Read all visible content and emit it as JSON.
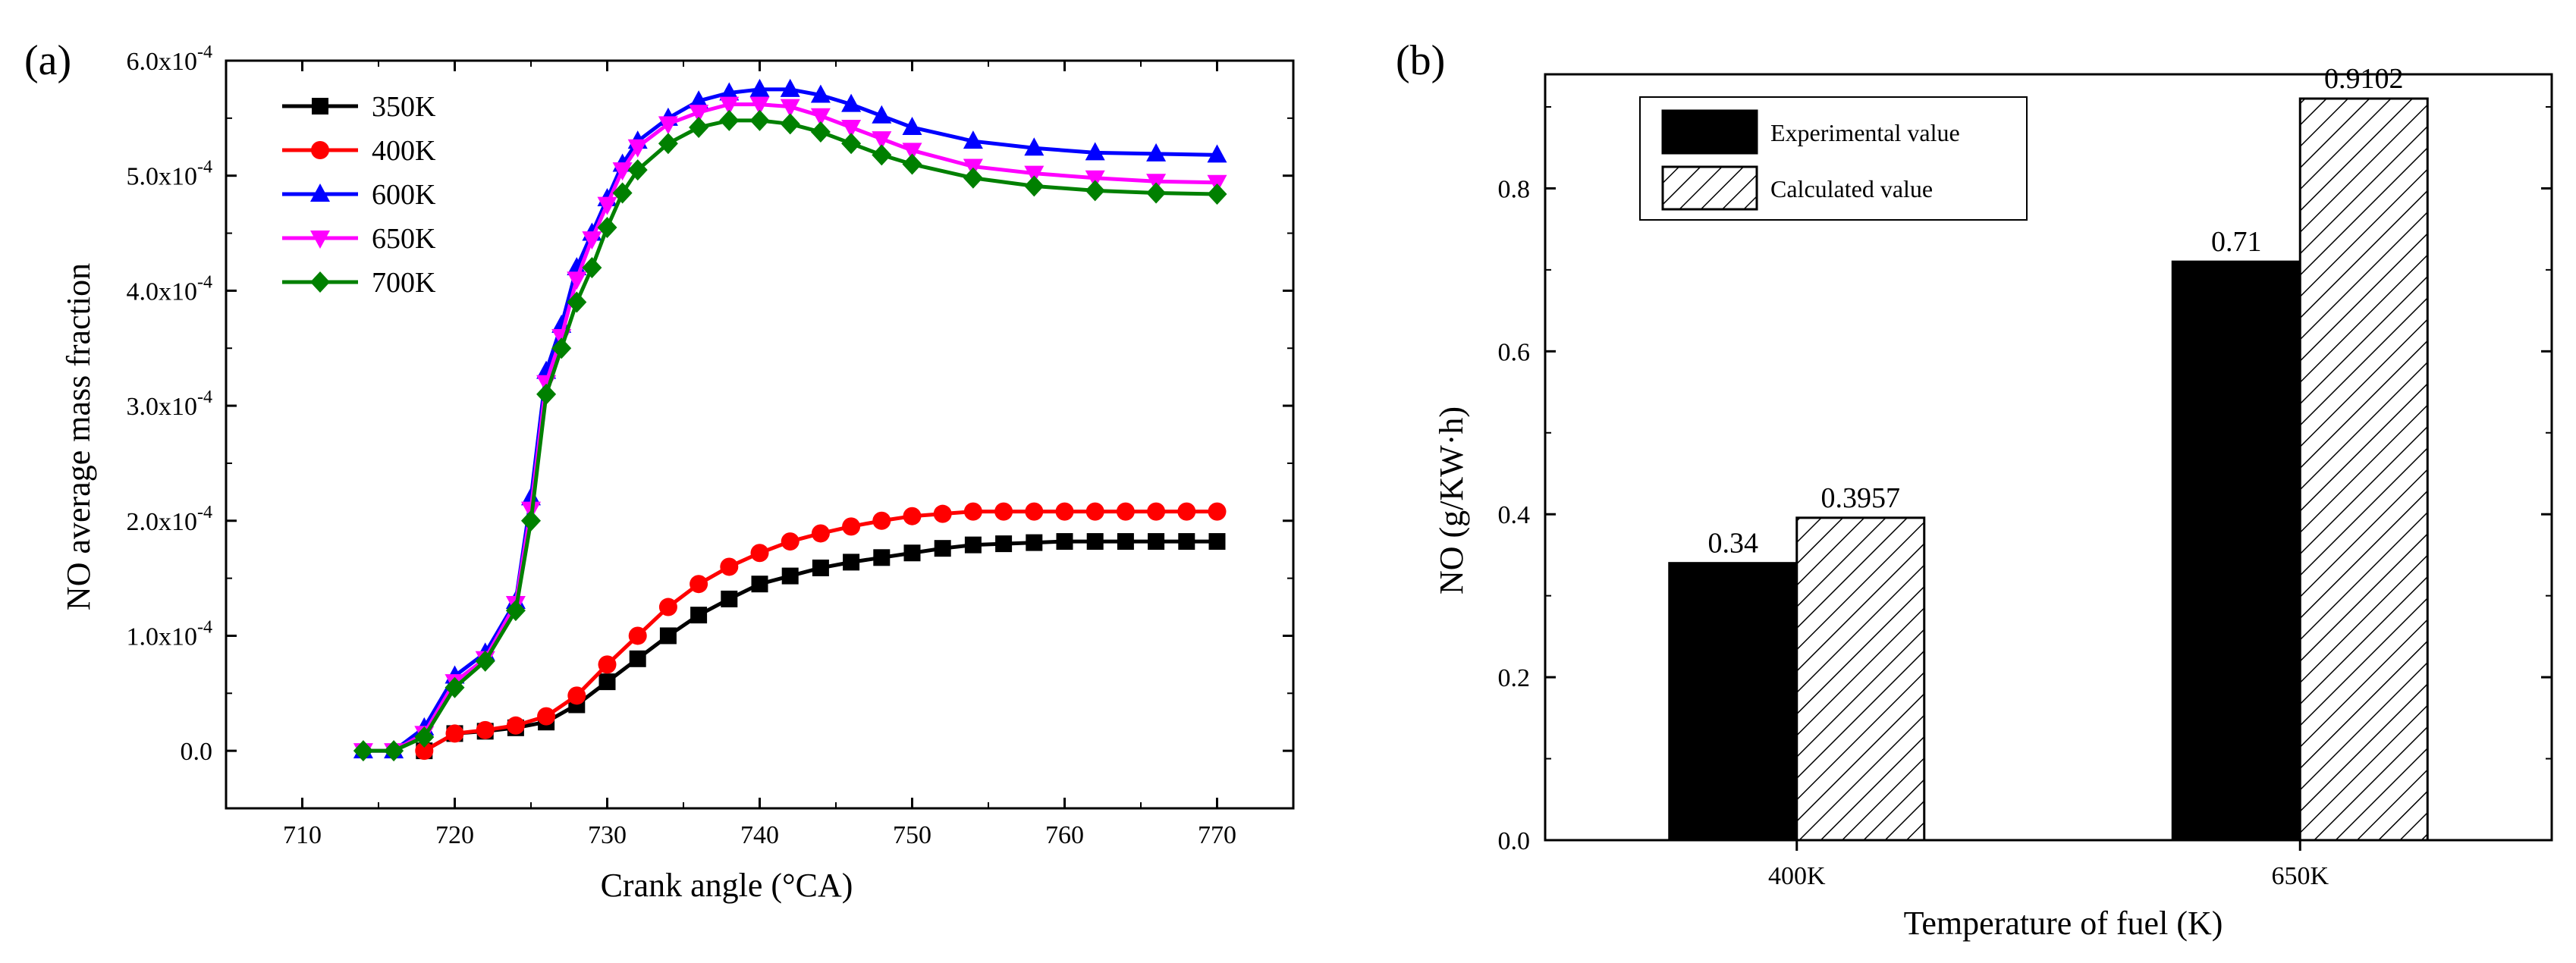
{
  "chart_data": [
    {
      "type": "line",
      "panel_label": "(a)",
      "xlabel": "Crank angle (°CA)",
      "ylabel": "NO average mass fraction",
      "xlim": [
        705,
        775
      ],
      "ylim": [
        -5e-05,
        0.0006
      ],
      "x_ticks": [
        710,
        720,
        730,
        740,
        750,
        760,
        770
      ],
      "y_ticks": [
        {
          "value": 0,
          "label": "0.0"
        },
        {
          "value": 0.0001,
          "label": "1.0x10",
          "exp": "-4"
        },
        {
          "value": 0.0002,
          "label": "2.0x10",
          "exp": "-4"
        },
        {
          "value": 0.0003,
          "label": "3.0x10",
          "exp": "-4"
        },
        {
          "value": 0.0004,
          "label": "4.0x10",
          "exp": "-4"
        },
        {
          "value": 0.0005,
          "label": "5.0x10",
          "exp": "-4"
        },
        {
          "value": 0.0006,
          "label": "6.0x10",
          "exp": "-4"
        }
      ],
      "legend_position": "top-left",
      "series": [
        {
          "name": "350K",
          "color": "#000000",
          "marker": "square",
          "x": [
            718,
            720,
            722,
            724,
            726,
            728,
            730,
            732,
            734,
            736,
            738,
            740,
            742,
            744,
            746,
            748,
            750,
            752,
            754,
            756,
            758,
            760,
            762,
            764,
            766,
            768,
            770
          ],
          "y": [
            0,
            1.5e-05,
            1.7e-05,
            2e-05,
            2.5e-05,
            4e-05,
            6e-05,
            8e-05,
            0.0001,
            0.000118,
            0.000132,
            0.000145,
            0.000152,
            0.000159,
            0.000164,
            0.000168,
            0.000172,
            0.000176,
            0.000179,
            0.00018,
            0.000181,
            0.000182,
            0.000182,
            0.000182,
            0.000182,
            0.000182,
            0.000182
          ]
        },
        {
          "name": "400K",
          "color": "#ff0000",
          "marker": "circle",
          "x": [
            718,
            720,
            722,
            724,
            726,
            728,
            730,
            732,
            734,
            736,
            738,
            740,
            742,
            744,
            746,
            748,
            750,
            752,
            754,
            756,
            758,
            760,
            762,
            764,
            766,
            768,
            770
          ],
          "y": [
            0,
            1.5e-05,
            1.8e-05,
            2.2e-05,
            3e-05,
            4.8e-05,
            7.5e-05,
            0.0001,
            0.000125,
            0.000145,
            0.00016,
            0.000172,
            0.000182,
            0.000189,
            0.000195,
            0.0002,
            0.000204,
            0.000206,
            0.000208,
            0.000208,
            0.000208,
            0.000208,
            0.000208,
            0.000208,
            0.000208,
            0.000208,
            0.000208
          ]
        },
        {
          "name": "600K",
          "color": "#0000ff",
          "marker": "triangle-up",
          "x": [
            714,
            716,
            718,
            720,
            722,
            724,
            725,
            726,
            727,
            728,
            729,
            730,
            731,
            732,
            734,
            736,
            738,
            740,
            742,
            744,
            746,
            748,
            750,
            754,
            758,
            762,
            766,
            770
          ],
          "y": [
            0,
            0,
            2e-05,
            6.5e-05,
            8.5e-05,
            0.00013,
            0.00022,
            0.00033,
            0.00037,
            0.00042,
            0.00045,
            0.00048,
            0.00051,
            0.00053,
            0.00055,
            0.000565,
            0.000572,
            0.000575,
            0.000575,
            0.00057,
            0.000562,
            0.000552,
            0.000542,
            0.00053,
            0.000524,
            0.00052,
            0.000519,
            0.000518
          ]
        },
        {
          "name": "650K",
          "color": "#ff00ff",
          "marker": "triangle-down",
          "x": [
            714,
            716,
            718,
            720,
            722,
            724,
            725,
            726,
            727,
            728,
            729,
            730,
            731,
            732,
            734,
            736,
            738,
            740,
            742,
            744,
            746,
            748,
            750,
            754,
            758,
            762,
            766,
            770
          ],
          "y": [
            0,
            0,
            1.5e-05,
            6e-05,
            8e-05,
            0.000128,
            0.00021,
            0.00032,
            0.00036,
            0.00041,
            0.000445,
            0.000475,
            0.000505,
            0.000525,
            0.000545,
            0.000555,
            0.000562,
            0.000562,
            0.00056,
            0.000552,
            0.000542,
            0.000532,
            0.000522,
            0.000508,
            0.000502,
            0.000498,
            0.000495,
            0.000494
          ]
        },
        {
          "name": "700K",
          "color": "#008000",
          "marker": "diamond",
          "x": [
            714,
            716,
            718,
            720,
            722,
            724,
            725,
            726,
            727,
            728,
            729,
            730,
            731,
            732,
            734,
            736,
            738,
            740,
            742,
            744,
            746,
            748,
            750,
            754,
            758,
            762,
            766,
            770
          ],
          "y": [
            0,
            0,
            1.2e-05,
            5.5e-05,
            7.8e-05,
            0.000122,
            0.0002,
            0.00031,
            0.00035,
            0.00039,
            0.00042,
            0.000455,
            0.000485,
            0.000505,
            0.000528,
            0.000542,
            0.000548,
            0.000548,
            0.000545,
            0.000538,
            0.000528,
            0.000518,
            0.00051,
            0.000498,
            0.000491,
            0.000487,
            0.000485,
            0.000484
          ]
        }
      ]
    },
    {
      "type": "bar",
      "panel_label": "(b)",
      "xlabel": "Temperature of fuel (K)",
      "ylabel": "NO  (g/KW·h)",
      "categories": [
        "400K",
        "650K"
      ],
      "ylim": [
        0,
        0.94
      ],
      "y_ticks": [
        0.0,
        0.2,
        0.4,
        0.6,
        0.8
      ],
      "y_tick_labels": [
        "0.0",
        "0.2",
        "0.4",
        "0.6",
        "0.8"
      ],
      "legend_position": "top-left",
      "series": [
        {
          "name": "Experimental value",
          "fill": "solid-black",
          "values": [
            0.34,
            0.71
          ],
          "value_labels": [
            "0.34",
            "0.71"
          ]
        },
        {
          "name": "Calculated value",
          "fill": "hatched",
          "values": [
            0.3957,
            0.9102
          ],
          "value_labels": [
            "0.3957",
            "0.9102"
          ]
        }
      ]
    }
  ]
}
